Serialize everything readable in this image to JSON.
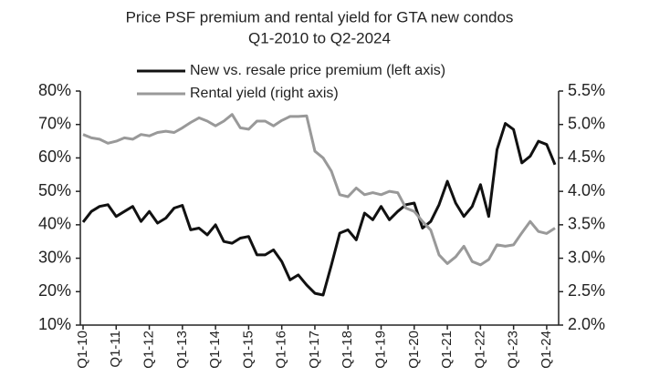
{
  "chart_data": {
    "type": "line",
    "title": "Price PSF premium and rental yield for GTA new condos",
    "subtitle": "Q1-2010 to Q2-2024",
    "categories": [
      "Q1-10",
      null,
      null,
      null,
      "Q1-11",
      null,
      null,
      null,
      "Q1-12",
      null,
      null,
      null,
      "Q1-13",
      null,
      null,
      null,
      "Q1-14",
      null,
      null,
      null,
      "Q1-15",
      null,
      null,
      null,
      "Q1-16",
      null,
      null,
      null,
      "Q1-17",
      null,
      null,
      null,
      "Q1-18",
      null,
      null,
      null,
      "Q1-19",
      null,
      null,
      null,
      "Q1-20",
      null,
      null,
      null,
      "Q1-21",
      null,
      null,
      null,
      "Q1-22",
      null,
      null,
      null,
      "Q1-23",
      null,
      null,
      null,
      "Q1-24",
      null
    ],
    "series": [
      {
        "name": "New vs. resale price premium (left axis)",
        "color": "#111111",
        "axis": "y",
        "values": [
          40.8,
          44,
          45.5,
          46,
          42.5,
          44,
          45.5,
          41,
          44,
          40.5,
          42,
          45,
          45.8,
          38.5,
          39,
          37,
          40,
          35,
          34.5,
          36,
          36.5,
          31,
          31,
          32.5,
          29,
          23.5,
          25,
          22,
          19.5,
          19,
          28,
          37.5,
          38.5,
          35.5,
          43.5,
          41.5,
          45.5,
          41.5,
          44,
          46,
          46.5,
          39,
          41,
          46,
          53,
          46.5,
          42.5,
          45.5,
          52,
          42.5,
          62.5,
          70.3,
          68.5,
          58.5,
          60.5,
          65,
          64,
          58
        ]
      },
      {
        "name": "Rental yield (right axis)",
        "color": "#999999",
        "axis": "y2",
        "values": [
          4.85,
          4.8,
          4.78,
          4.72,
          4.75,
          4.8,
          4.78,
          4.85,
          4.83,
          4.88,
          4.9,
          4.88,
          4.95,
          5.03,
          5.1,
          5.05,
          4.98,
          5.05,
          5.15,
          4.95,
          4.93,
          5.05,
          5.05,
          4.98,
          5.06,
          5.12,
          5.12,
          5.13,
          4.6,
          4.5,
          4.3,
          3.95,
          3.92,
          4.05,
          3.95,
          3.98,
          3.95,
          4.0,
          3.98,
          3.75,
          3.7,
          3.55,
          3.42,
          3.05,
          2.92,
          3.02,
          3.18,
          2.95,
          2.9,
          2.98,
          3.2,
          3.18,
          3.2,
          3.38,
          3.55,
          3.4,
          3.37,
          3.45
        ]
      }
    ],
    "ylim": [
      10,
      80
    ],
    "yticks": [
      {
        "value": 10,
        "label": "10%"
      },
      {
        "value": 20,
        "label": "20%"
      },
      {
        "value": 30,
        "label": "30%"
      },
      {
        "value": 40,
        "label": "40%"
      },
      {
        "value": 50,
        "label": "50%"
      },
      {
        "value": 60,
        "label": "60%"
      },
      {
        "value": 70,
        "label": "70%"
      },
      {
        "value": 80,
        "label": "80%"
      }
    ],
    "y2lim": [
      2.0,
      5.5
    ],
    "y2ticks": [
      {
        "value": 2.0,
        "label": "2.0%"
      },
      {
        "value": 2.5,
        "label": "2.5%"
      },
      {
        "value": 3.0,
        "label": "3.0%"
      },
      {
        "value": 3.5,
        "label": "3.5%"
      },
      {
        "value": 4.0,
        "label": "4.0%"
      },
      {
        "value": 4.5,
        "label": "4.5%"
      },
      {
        "value": 5.0,
        "label": "5.0%"
      },
      {
        "value": 5.5,
        "label": "5.5%"
      }
    ],
    "grid": false
  }
}
